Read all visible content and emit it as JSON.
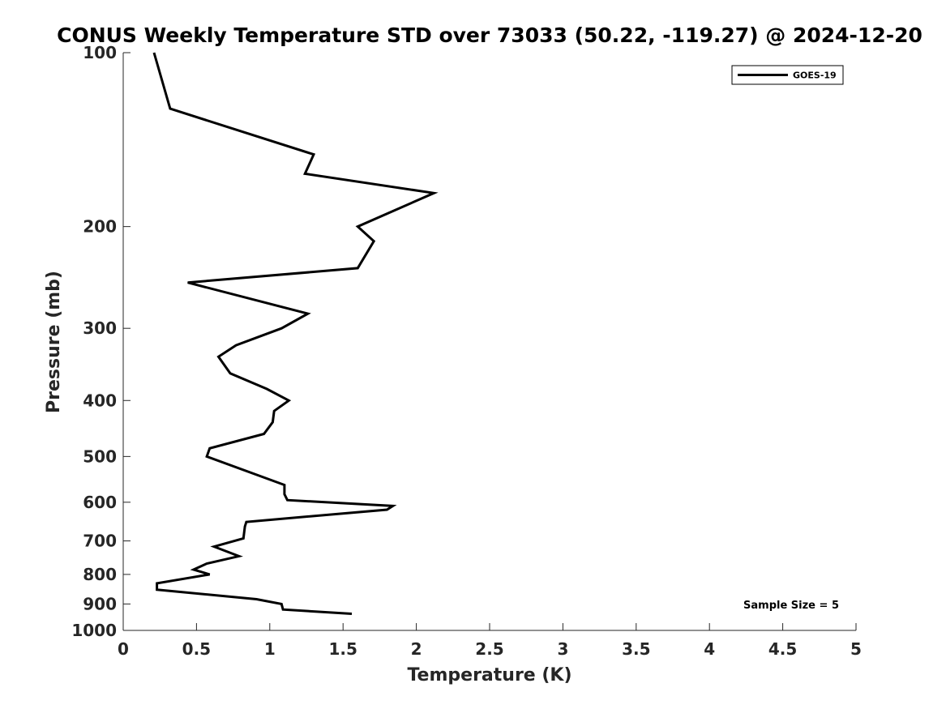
{
  "chart_data": {
    "type": "line",
    "title": "CONUS Weekly Temperature STD over 73033 (50.22, -119.27) @ 2024-12-20",
    "xlabel": "Temperature (K)",
    "ylabel": "Pressure (mb)",
    "xlim": [
      0,
      5
    ],
    "ylim": [
      100,
      1000
    ],
    "yscale": "log",
    "y_reversed": true,
    "x_ticks": [
      0,
      0.5,
      1,
      1.5,
      2,
      2.5,
      3,
      3.5,
      4,
      4.5,
      5
    ],
    "x_tick_labels": [
      "0",
      "0.5",
      "1",
      "1.5",
      "2",
      "2.5",
      "3",
      "3.5",
      "4",
      "4.5",
      "5"
    ],
    "y_ticks": [
      100,
      200,
      300,
      400,
      500,
      600,
      700,
      800,
      900,
      1000
    ],
    "y_tick_labels": [
      "100",
      "200",
      "300",
      "400",
      "500",
      "600",
      "700",
      "800",
      "900",
      "1000"
    ],
    "grid": false,
    "legend": {
      "position": "top-right",
      "entries": [
        "GOES-19"
      ]
    },
    "annotation": "Sample Size = 5",
    "series": [
      {
        "name": "GOES-19",
        "color": "#000000",
        "points": [
          {
            "x": 0.21,
            "y": 100
          },
          {
            "x": 0.32,
            "y": 125
          },
          {
            "x": 1.3,
            "y": 150
          },
          {
            "x": 1.24,
            "y": 162
          },
          {
            "x": 2.12,
            "y": 175
          },
          {
            "x": 1.6,
            "y": 200
          },
          {
            "x": 1.71,
            "y": 212
          },
          {
            "x": 1.6,
            "y": 236
          },
          {
            "x": 0.44,
            "y": 250
          },
          {
            "x": 1.26,
            "y": 283
          },
          {
            "x": 1.08,
            "y": 300
          },
          {
            "x": 0.77,
            "y": 321
          },
          {
            "x": 0.65,
            "y": 336
          },
          {
            "x": 0.73,
            "y": 359
          },
          {
            "x": 0.98,
            "y": 382
          },
          {
            "x": 1.13,
            "y": 400
          },
          {
            "x": 1.03,
            "y": 417
          },
          {
            "x": 1.02,
            "y": 436
          },
          {
            "x": 0.96,
            "y": 457
          },
          {
            "x": 0.59,
            "y": 484
          },
          {
            "x": 0.57,
            "y": 500
          },
          {
            "x": 1.1,
            "y": 560
          },
          {
            "x": 1.1,
            "y": 581
          },
          {
            "x": 1.12,
            "y": 595
          },
          {
            "x": 1.84,
            "y": 609
          },
          {
            "x": 1.8,
            "y": 618
          },
          {
            "x": 0.84,
            "y": 649
          },
          {
            "x": 0.83,
            "y": 661
          },
          {
            "x": 0.82,
            "y": 693
          },
          {
            "x": 0.62,
            "y": 716
          },
          {
            "x": 0.79,
            "y": 744
          },
          {
            "x": 0.57,
            "y": 766
          },
          {
            "x": 0.48,
            "y": 785
          },
          {
            "x": 0.59,
            "y": 800
          },
          {
            "x": 0.23,
            "y": 829
          },
          {
            "x": 0.23,
            "y": 850
          },
          {
            "x": 0.91,
            "y": 883
          },
          {
            "x": 1.08,
            "y": 900
          },
          {
            "x": 1.09,
            "y": 920
          },
          {
            "x": 1.56,
            "y": 936
          }
        ]
      }
    ]
  }
}
